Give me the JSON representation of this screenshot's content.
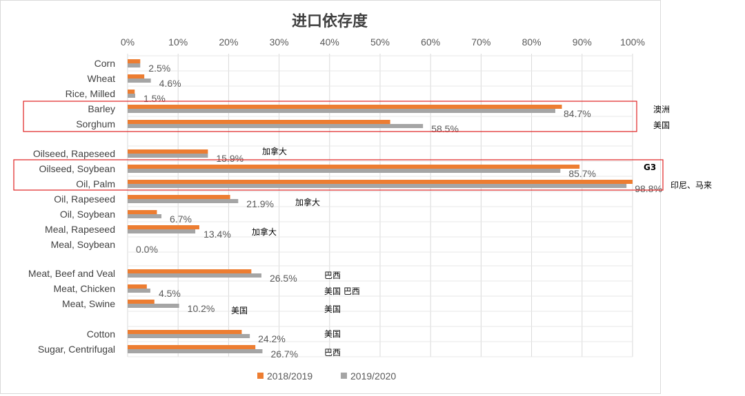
{
  "chart_data": {
    "type": "bar",
    "orientation": "horizontal",
    "title": "进口依存度",
    "x_axis": {
      "min": 0,
      "max": 100,
      "step": 10,
      "unit": "%",
      "position": "top",
      "ticks": [
        "0%",
        "10%",
        "20%",
        "30%",
        "40%",
        "50%",
        "60%",
        "70%",
        "80%",
        "90%",
        "100%"
      ]
    },
    "grid": true,
    "legend_position": "bottom",
    "categories": [
      "Corn",
      "Wheat",
      "Rice, Milled",
      "Barley",
      "Sorghum",
      "Oilseed, Rapeseed",
      "Oilseed, Soybean",
      "Oil, Palm",
      "Oil, Rapeseed",
      "Oil, Soybean",
      "Meal, Rapeseed",
      "Meal, Soybean",
      "Meat, Beef and Veal",
      "Meat, Chicken",
      "Meat, Swine",
      "Cotton",
      "Sugar, Centrifugal"
    ],
    "series": [
      {
        "name": "2018/2019",
        "color": "#ED7D31",
        "values": [
          2.5,
          3.3,
          1.4,
          86.0,
          52.0,
          15.9,
          89.5,
          100.0,
          20.3,
          5.8,
          14.2,
          0.0,
          24.5,
          3.8,
          5.3,
          22.6,
          25.3
        ]
      },
      {
        "name": "2019/2020",
        "color": "#A5A5A5",
        "values": [
          2.5,
          4.6,
          1.5,
          84.7,
          58.5,
          15.9,
          85.7,
          98.8,
          21.9,
          6.7,
          13.4,
          0.0,
          26.5,
          4.5,
          10.2,
          24.2,
          26.7
        ]
      }
    ],
    "data_labels": [
      "2.5%",
      "4.6%",
      "1.5%",
      "84.7%",
      "58.5%",
      "15.9%",
      "85.7%",
      "98.8%",
      "21.9%",
      "6.7%",
      "13.4%",
      "0.0%",
      "26.5%",
      "4.5%",
      "10.2%",
      "24.2%",
      "26.7%"
    ],
    "annotations": [
      {
        "text": "澳洲",
        "category": "Barley"
      },
      {
        "text": "美国",
        "category": "Sorghum"
      },
      {
        "text": "加拿大",
        "category": "Oilseed, Rapeseed"
      },
      {
        "text": "G3",
        "category": "Oilseed, Soybean",
        "bold": true
      },
      {
        "text": "印尼、马来",
        "category": "Oil, Palm"
      },
      {
        "text": "加拿大",
        "category": "Oil, Rapeseed"
      },
      {
        "text": "加拿大",
        "category": "Meal, Rapeseed"
      },
      {
        "text": "巴西",
        "category": "Meat, Beef and Veal"
      },
      {
        "text": "美国 巴西",
        "category": "Meat, Chicken"
      },
      {
        "text": "美国",
        "category": "Meat, Swine",
        "slot": "left"
      },
      {
        "text": "美国",
        "category": "Meat, Swine",
        "slot": "right"
      },
      {
        "text": "美国",
        "category": "Cotton"
      },
      {
        "text": "巴西",
        "category": "Sugar, Centrifugal"
      }
    ],
    "highlight_boxes": [
      {
        "from": "Barley",
        "to": "Sorghum",
        "color": "#E02020"
      },
      {
        "from": "Oilseed, Soybean",
        "to": "Oil, Palm",
        "color": "#E02020"
      }
    ]
  }
}
